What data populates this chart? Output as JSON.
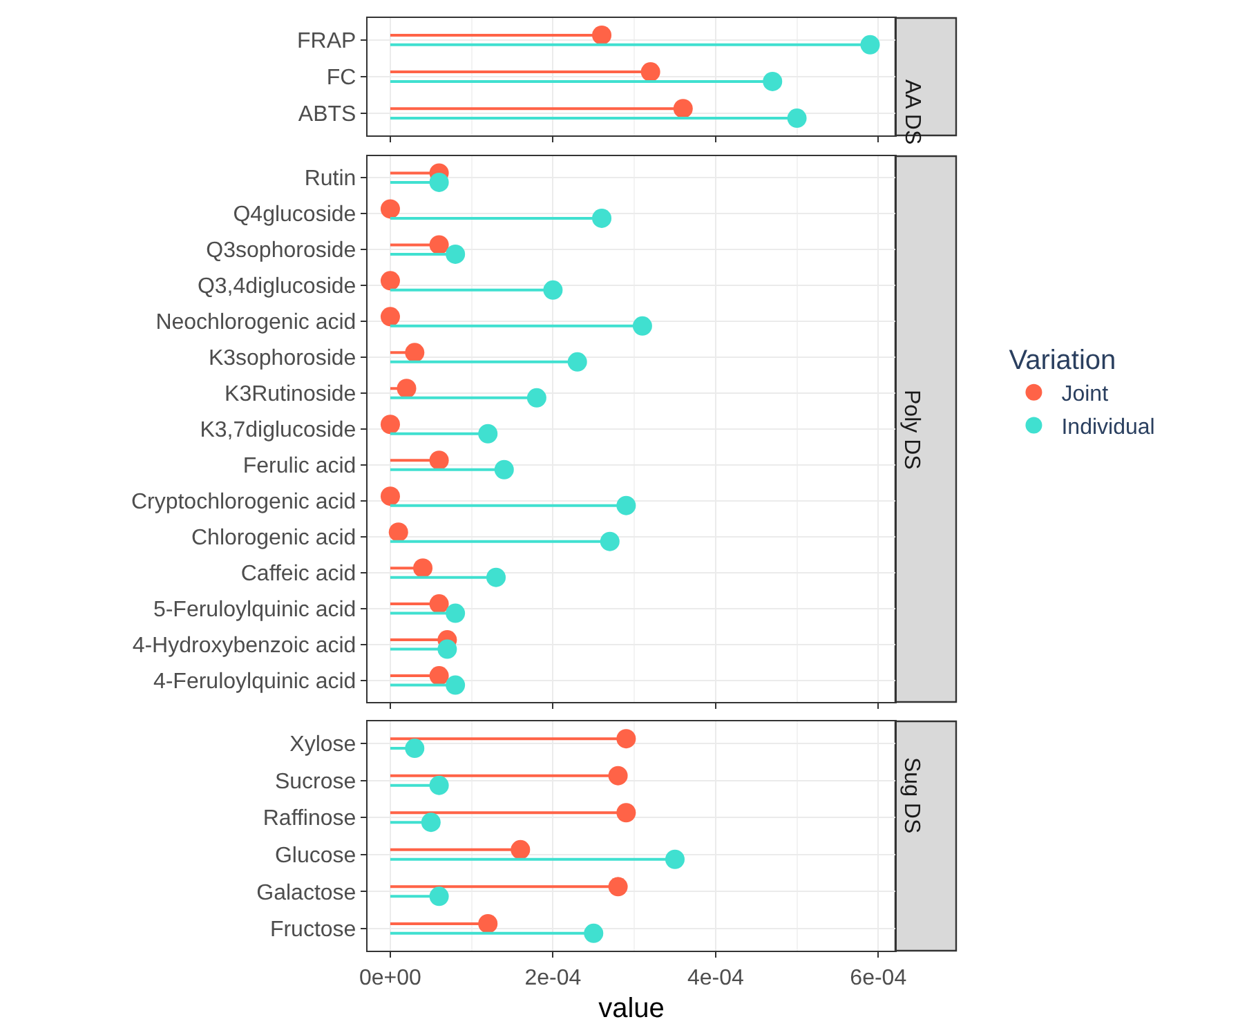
{
  "chart_data": [
    {
      "type": "lollipop",
      "orientation": "horizontal",
      "title": "AA DS",
      "categories": [
        "FRAP",
        "FC",
        "ABTS"
      ],
      "series": [
        {
          "name": "Joint",
          "color": "#ff6347",
          "values": [
            0.00026,
            0.00032,
            0.00036
          ]
        },
        {
          "name": "Individual",
          "color": "#40e0d0",
          "values": [
            0.00059,
            0.00047,
            0.0005
          ]
        }
      ],
      "xlim": [
        -2.8e-05,
        0.000621
      ],
      "xticks": [
        {
          "value": 0,
          "label": null
        },
        {
          "value": 0.0002,
          "label": null
        },
        {
          "value": 0.0004,
          "label": null
        },
        {
          "value": 0.0006,
          "label": null
        }
      ],
      "grid": true,
      "marker": "circle",
      "tick_labels": "y",
      "legend": "right",
      "legend_title": "Variation"
    },
    {
      "type": "lollipop",
      "orientation": "horizontal",
      "title": "Poly DS",
      "categories": [
        "Rutin",
        "Q4glucoside",
        "Q3sophoroside",
        "Q3,4diglucoside",
        "Neochlorogenic acid",
        "K3sophoroside",
        "K3Rutinoside",
        "K3,7diglucoside",
        "Ferulic acid",
        "Cryptochlorogenic acid",
        "Chlorogenic acid",
        "Caffeic acid",
        "5-Feruloylquinic acid",
        "4-Hydroxybenzoic acid",
        "4-Feruloylquinic acid"
      ],
      "series": [
        {
          "color": "#ff6347",
          "values": [
            6e-05,
            0.0,
            6e-05,
            0.0,
            0.0,
            3e-05,
            2e-05,
            0.0,
            6e-05,
            0.0,
            1e-05,
            4e-05,
            6e-05,
            7e-05,
            6e-05
          ]
        },
        {
          "color": "#40e0d0",
          "values": [
            6e-05,
            0.00026,
            8e-05,
            0.0002,
            0.00031,
            0.00023,
            0.00018,
            0.00012,
            0.00014,
            0.00029,
            0.00027,
            0.00013,
            8e-05,
            7e-05,
            8e-05
          ]
        }
      ],
      "xlim": [
        -2.8e-05,
        0.000621
      ],
      "xticks": [
        {
          "value": 0,
          "label": null
        },
        {
          "value": 0.0002,
          "label": null
        },
        {
          "value": 0.0004,
          "label": null
        },
        {
          "value": 0.0006,
          "label": null
        }
      ],
      "grid": true,
      "marker": "circle",
      "tick_labels": "y",
      "legend": false
    },
    {
      "type": "lollipop",
      "orientation": "horizontal",
      "title": "Sug DS",
      "xlabel": "value",
      "categories": [
        "Xylose",
        "Sucrose",
        "Raffinose",
        "Glucose",
        "Galactose",
        "Fructose"
      ],
      "series": [
        {
          "color": "#ff6347",
          "values": [
            0.00029,
            0.00028,
            0.00029,
            0.00016,
            0.00028,
            0.00012
          ]
        },
        {
          "color": "#40e0d0",
          "values": [
            3e-05,
            6e-05,
            5e-05,
            0.00035,
            6e-05,
            0.00025
          ]
        }
      ],
      "xlim": [
        -2.8e-05,
        0.000621
      ],
      "xticks": [
        {
          "value": 0,
          "label": "0e+00"
        },
        {
          "value": 0.0002,
          "label": "2e-04"
        },
        {
          "value": 0.0004,
          "label": "4e-04"
        },
        {
          "value": 0.0006,
          "label": "6e-04"
        }
      ],
      "grid": true,
      "marker": "circle",
      "legend": false
    }
  ]
}
